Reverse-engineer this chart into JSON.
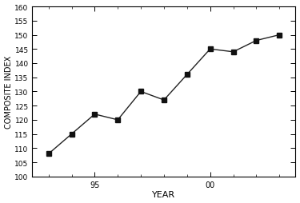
{
  "years": [
    1993,
    1994,
    1995,
    1996,
    1997,
    1998,
    1999,
    2000,
    2001,
    2002,
    2003
  ],
  "values": [
    108,
    115,
    122,
    120,
    130,
    127,
    136,
    145,
    144,
    148,
    150
  ],
  "xlabel": "YEAR",
  "ylabel": "COMPOSITE INDEX",
  "ylim": [
    100,
    160
  ],
  "xlim": [
    1992.3,
    2003.7
  ],
  "line_color": "#222222",
  "marker": "s",
  "marker_color": "#111111",
  "marker_size": 4,
  "bg_color": "#ffffff",
  "ytick_positions": [
    100,
    105,
    110,
    115,
    120,
    125,
    130,
    135,
    140,
    145,
    150,
    155,
    160
  ],
  "ytick_labels": [
    "100",
    "105",
    "110",
    "115",
    "120",
    "125",
    "130",
    "135",
    "140",
    "145",
    "150",
    "155",
    "160"
  ]
}
